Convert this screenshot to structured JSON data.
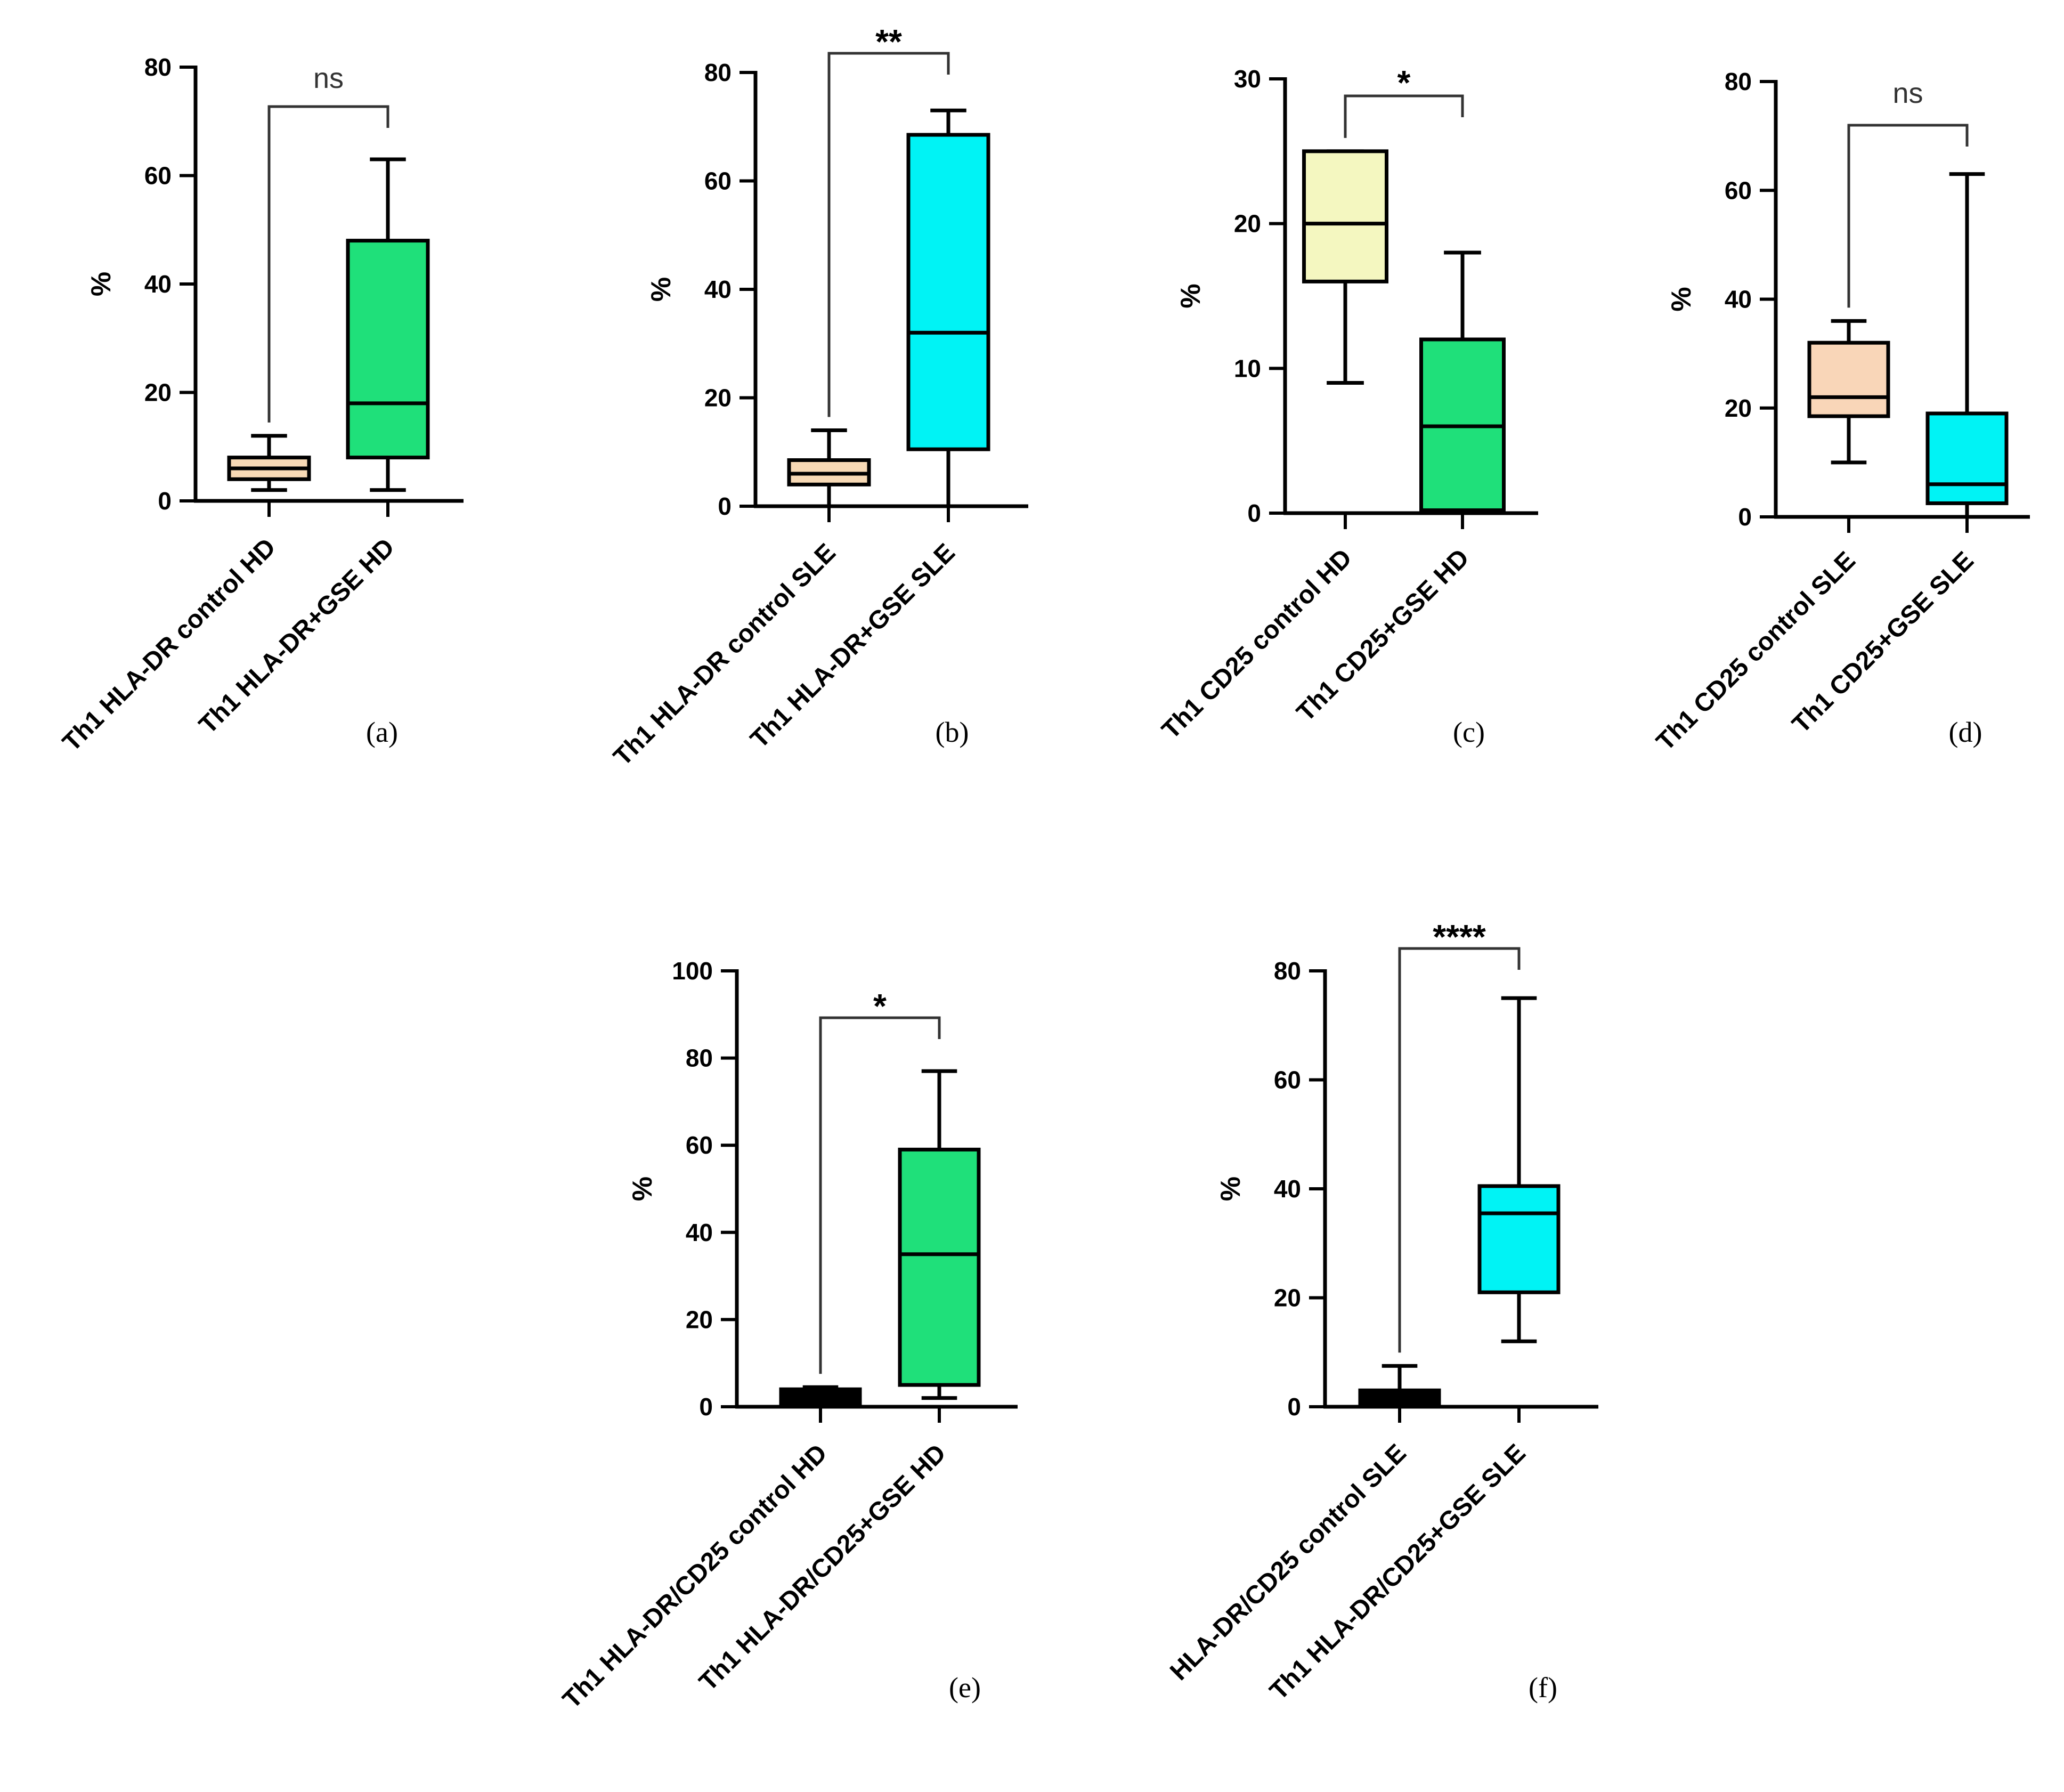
{
  "chart_data": [
    {
      "type": "box",
      "panel_label": "(a)",
      "ylabel": "%",
      "ylim": [
        0,
        80
      ],
      "yticks": [
        "0",
        "20",
        "40",
        "60",
        "80"
      ],
      "categories": [
        "Th1 HLA-DR control HD",
        "Th1 HLA-DR+GSE HD"
      ],
      "boxes": [
        {
          "min": 2,
          "q1": 4,
          "median": 6,
          "q3": 8,
          "max": 12,
          "color": "#F7D9B5"
        },
        {
          "min": 2,
          "q1": 8,
          "median": 18,
          "q3": 48,
          "max": 63,
          "color": "#1FE07A"
        }
      ],
      "significance": "ns"
    },
    {
      "type": "box",
      "panel_label": "(b)",
      "ylabel": "%",
      "ylim": [
        0,
        80
      ],
      "yticks": [
        "0",
        "20",
        "40",
        "60",
        "80"
      ],
      "categories": [
        "Th1 HLA-DR control SLE",
        "Th1 HLA-DR+GSE SLE"
      ],
      "boxes": [
        {
          "min": 0,
          "q1": 4,
          "median": 6,
          "q3": 8.5,
          "max": 14,
          "color": "#F7D9B5"
        },
        {
          "min": 0,
          "q1": 10.5,
          "median": 32,
          "q3": 68.5,
          "max": 73,
          "color": "#00F3F5"
        }
      ],
      "significance": "**"
    },
    {
      "type": "box",
      "panel_label": "(c)",
      "ylabel": "%",
      "ylim": [
        0,
        30
      ],
      "yticks": [
        "0",
        "10",
        "20",
        "30"
      ],
      "categories": [
        "Th1 CD25 control HD",
        "Th1 CD25+GSE HD"
      ],
      "boxes": [
        {
          "min": 9,
          "q1": 16,
          "median": 20,
          "q3": 25,
          "max": 25,
          "color": "#F4F7C0"
        },
        {
          "min": 0,
          "q1": 0.2,
          "median": 6,
          "q3": 12,
          "max": 18,
          "color": "#1FE07A"
        }
      ],
      "significance": "*"
    },
    {
      "type": "box",
      "panel_label": "(d)",
      "ylabel": "%",
      "ylim": [
        0,
        80
      ],
      "yticks": [
        "0",
        "20",
        "40",
        "60",
        "80"
      ],
      "categories": [
        "Th1 CD25 control SLE",
        "Th1 CD25+GSE SLE"
      ],
      "boxes": [
        {
          "min": 10,
          "q1": 18.5,
          "median": 22,
          "q3": 32,
          "max": 36,
          "color": "#F9D6B8"
        },
        {
          "min": 0,
          "q1": 2.5,
          "median": 6,
          "q3": 19,
          "max": 63,
          "color": "#00F3F5"
        }
      ],
      "significance": "ns"
    },
    {
      "type": "box",
      "panel_label": "(e)",
      "ylabel": "%",
      "ylim": [
        0,
        100
      ],
      "yticks": [
        "0",
        "20",
        "40",
        "60",
        "80",
        "100"
      ],
      "categories": [
        "Th1 HLA-DR/CD25 control HD",
        "Th1 HLA-DR/CD25+GSE HD"
      ],
      "boxes": [
        {
          "min": 0,
          "q1": 0.5,
          "median": 2,
          "q3": 4,
          "max": 4.5,
          "color": "#000000"
        },
        {
          "min": 2,
          "q1": 5,
          "median": 35,
          "q3": 59,
          "max": 77,
          "color": "#1FE07A"
        }
      ],
      "significance": "*"
    },
    {
      "type": "box",
      "panel_label": "(f)",
      "ylabel": "%",
      "ylim": [
        0,
        80
      ],
      "yticks": [
        "0",
        "20",
        "40",
        "60",
        "80"
      ],
      "categories": [
        "HLA-DR/CD25 control SLE",
        "Th1 HLA-DR/CD25+GSE SLE"
      ],
      "boxes": [
        {
          "min": 0,
          "q1": 0.5,
          "median": 1.5,
          "q3": 3,
          "max": 7.5,
          "color": "#000000"
        },
        {
          "min": 12,
          "q1": 21,
          "median": 35.5,
          "q3": 40.5,
          "max": 75,
          "color": "#00F3F5"
        }
      ],
      "significance": "****"
    }
  ]
}
